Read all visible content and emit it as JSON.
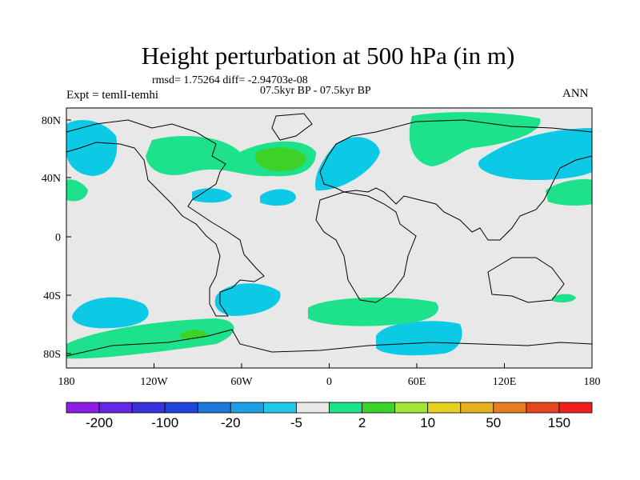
{
  "title": "Height perturbation at 500 hPa (in m)",
  "stats": "rmsd= 1.75264 diff= -2.94703e-08",
  "subtitle": "07.5kyr BP - 07.5kyr BP",
  "expt": "Expt = temlI-temhi",
  "season": "ANN",
  "map": {
    "lat_ticks": [
      "80N",
      "40N",
      "0",
      "40S",
      "80S"
    ],
    "lon_ticks": [
      "180",
      "120W",
      "60W",
      "0",
      "60E",
      "120E",
      "180"
    ],
    "background_color": "#e8e8e8",
    "coastline_color": "#000000"
  },
  "colorbar": {
    "colors": [
      "#8c1ee6",
      "#6428e6",
      "#3c32dc",
      "#1e46dc",
      "#1e78dc",
      "#1ea0e6",
      "#1ec8e6",
      "#e8e8e8",
      "#1ee18c",
      "#3cd228",
      "#a0e632",
      "#e6d21e",
      "#e6af1e",
      "#e67d1e",
      "#e6461e",
      "#f01e1e"
    ],
    "labels": [
      "-200",
      "-100",
      "-20",
      "-5",
      "2",
      "10",
      "50",
      "150"
    ]
  },
  "fields": {
    "negative_lo": "#00c8e6",
    "negative_hi": "#1e96e6",
    "positive_lo": "#1ee18c",
    "positive_hi": "#3cd228"
  }
}
